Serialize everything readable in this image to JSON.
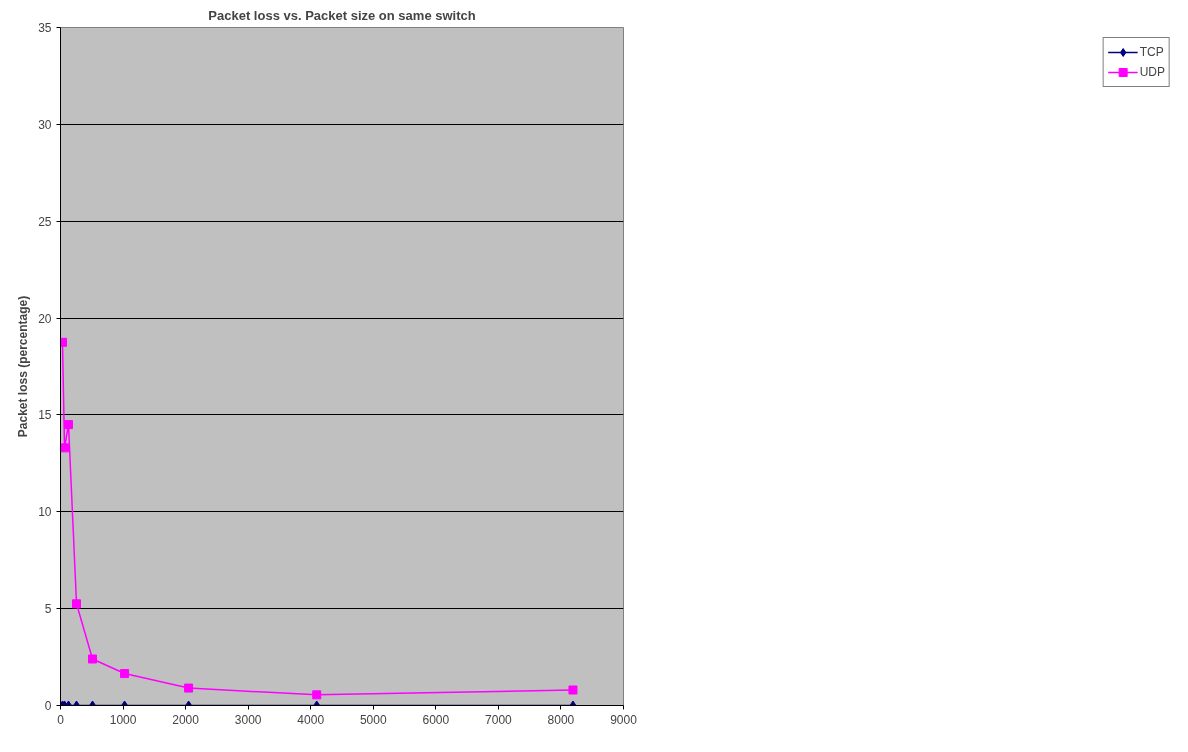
{
  "chart_data": {
    "type": "line",
    "title": "Packet loss vs. Packet size on same switch",
    "ylabel": "Packet loss (percentage)",
    "x": [
      32,
      64,
      128,
      256,
      512,
      1024,
      2048,
      4096,
      8192
    ],
    "series": [
      {
        "name": "TCP",
        "color": "#000080",
        "marker": "diamond",
        "values": [
          0,
          0,
          0,
          0,
          0,
          0,
          0,
          0,
          0
        ]
      },
      {
        "name": "UDP",
        "color": "#ff00ff",
        "marker": "square",
        "values": [
          18.75,
          13.3,
          14.5,
          5.25,
          2.4,
          1.65,
          0.9,
          0.55,
          0.8
        ]
      }
    ],
    "xlim": [
      0,
      9000
    ],
    "xticks": [
      0,
      1000,
      2000,
      3000,
      4000,
      5000,
      6000,
      7000,
      8000,
      9000
    ],
    "ylim": [
      0,
      35
    ],
    "yticks": [
      0,
      5,
      10,
      15,
      20,
      25,
      30,
      35
    ],
    "grid": "y",
    "legend": "right",
    "line_style": "solid"
  }
}
